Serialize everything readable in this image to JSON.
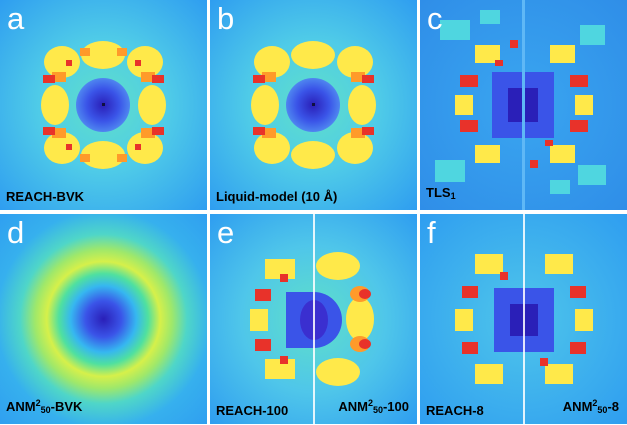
{
  "panels": [
    {
      "letter": "a",
      "label": "REACH-BVK"
    },
    {
      "letter": "b",
      "label": "Liquid-model (10 Å)"
    },
    {
      "letter": "c",
      "label_main": "TLS",
      "label_sub": "1"
    },
    {
      "letter": "d",
      "label_a": "ANM",
      "label_sup": "2",
      "label_sub": "50",
      "label_b": "-BVK"
    },
    {
      "letter": "e",
      "label_left": "REACH-100",
      "label_right_a": "ANM",
      "label_right_sup": "2",
      "label_right_sub": "50",
      "label_right_b": "-100"
    },
    {
      "letter": "f",
      "label_left": "REACH-8",
      "label_right_a": "ANM",
      "label_right_sup": "2",
      "label_right_sub": "50",
      "label_right_b": "-8"
    }
  ],
  "colors": {
    "background_blue": "#2f9ef0",
    "cyan": "#3fd6e6",
    "green": "#7fe86a",
    "yellow": "#ffe94a",
    "orange": "#ff9a2a",
    "red": "#e8322a",
    "center_blue": "#3a54e8",
    "deep_blue": "#2a1fb8"
  }
}
